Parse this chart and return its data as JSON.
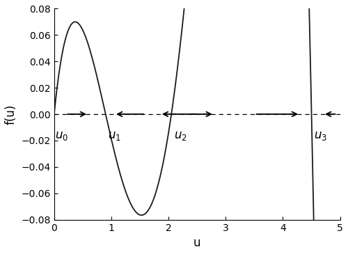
{
  "xlim": [
    0,
    5
  ],
  "ylim": [
    -0.08,
    0.08
  ],
  "xlabel": "u",
  "ylabel": "f(u)",
  "background_color": "#ffffff",
  "curve_color": "#1a1a1a",
  "curve_linewidth": 1.3,
  "arrow_color": "#000000",
  "dashed_line_color": "#000000",
  "u0": 0.0,
  "u1": 0.9,
  "u2": 2.0,
  "u3": 4.5,
  "A": -0.038,
  "yticks": [
    -0.08,
    -0.06,
    -0.04,
    -0.02,
    0.0,
    0.02,
    0.04,
    0.06,
    0.08
  ],
  "xticks": [
    0,
    1,
    2,
    3,
    4,
    5
  ],
  "label_fontsize": 12,
  "tick_fontsize": 10,
  "axes_linewidth": 0.8
}
